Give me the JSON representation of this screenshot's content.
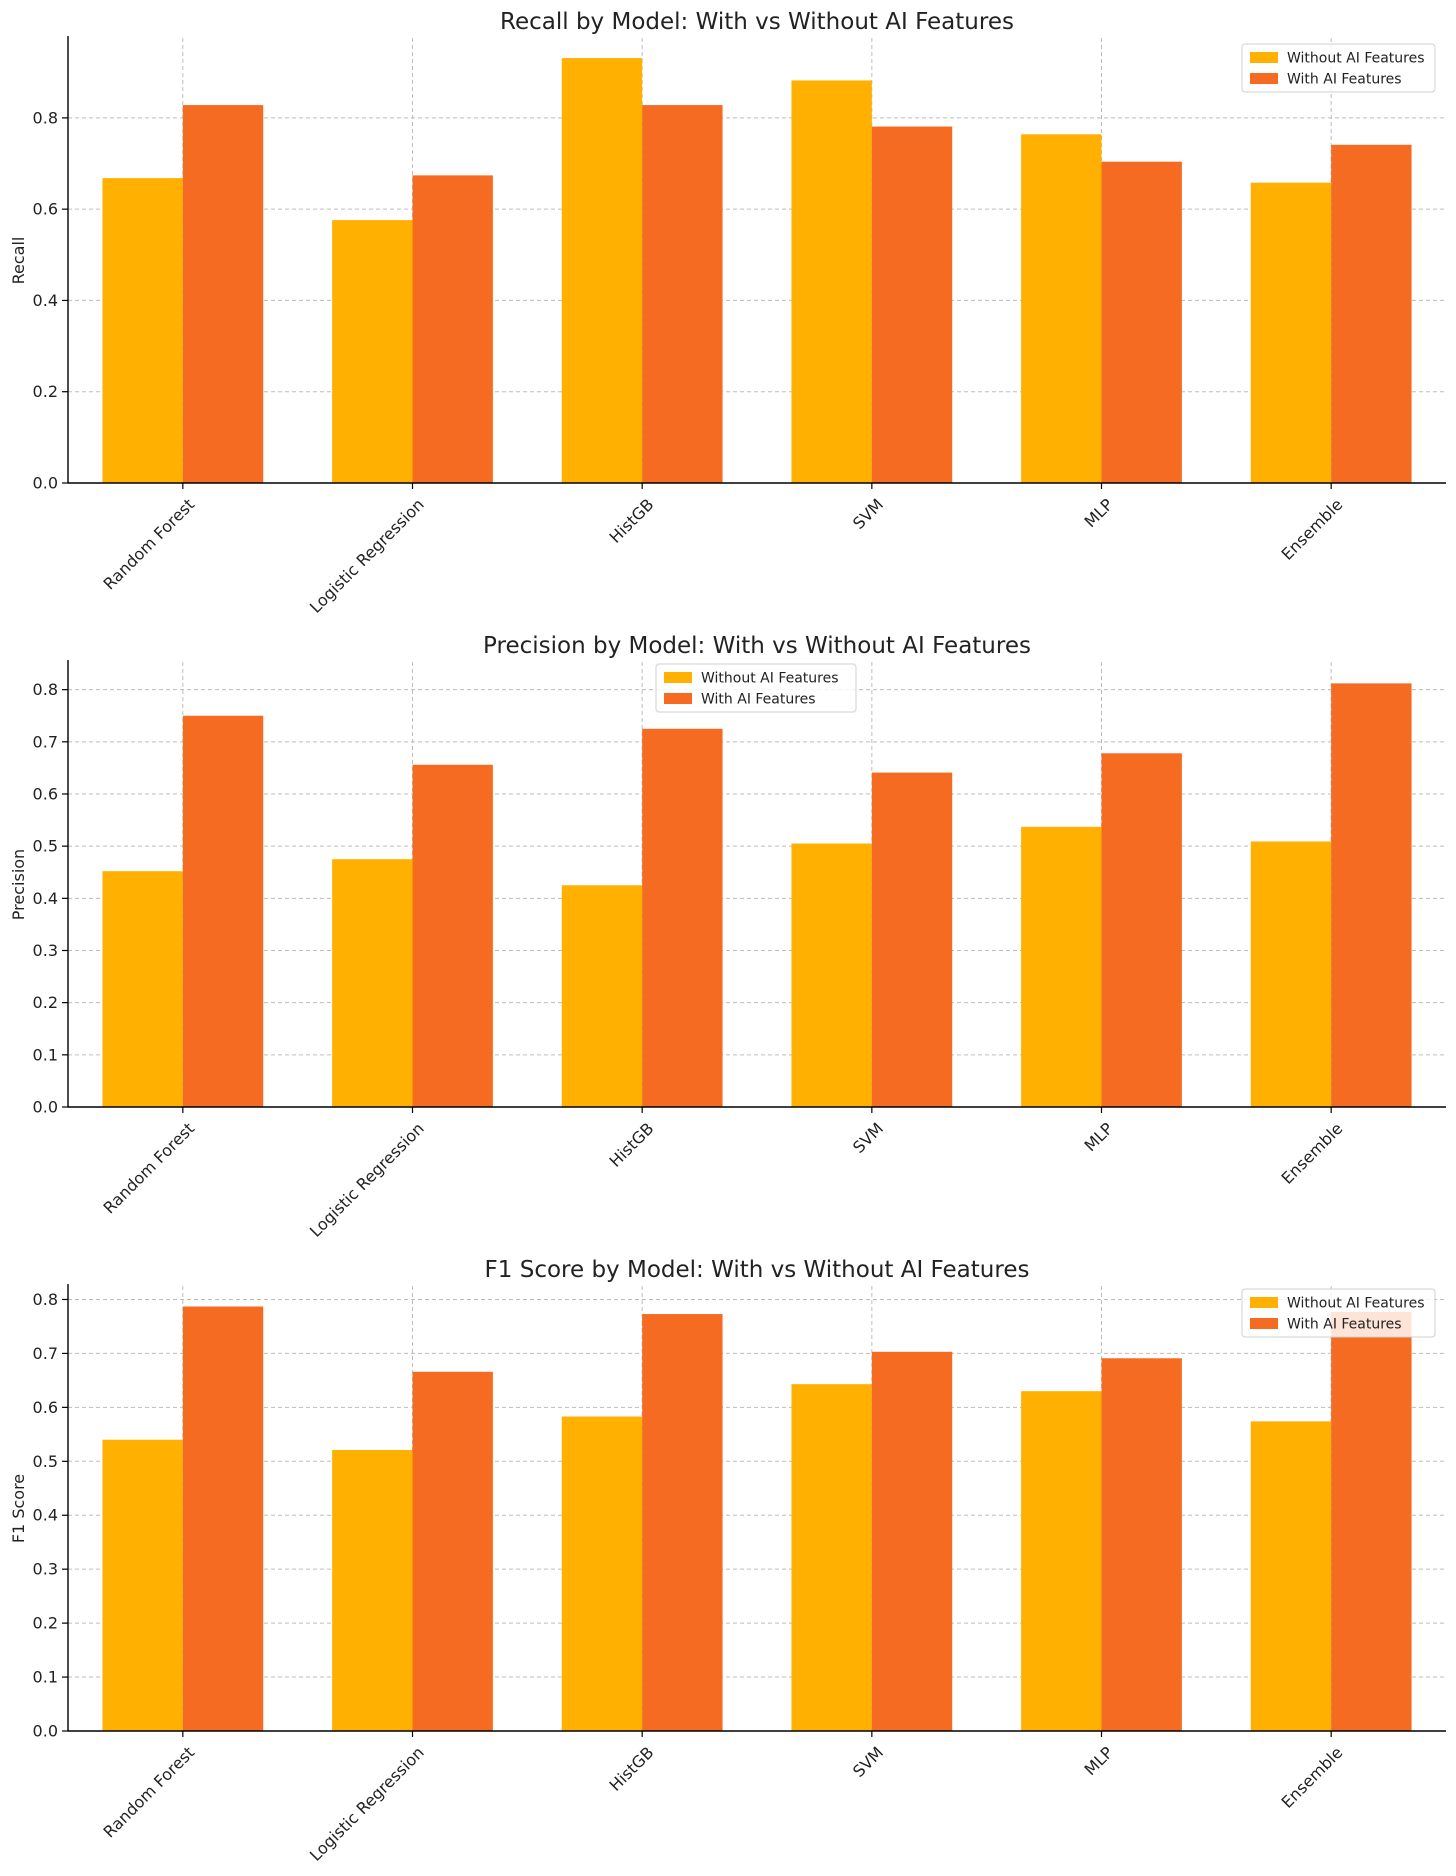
{
  "chart_data": [
    {
      "type": "bar",
      "title": "Recall by Model: With vs Without AI Features",
      "xlabel": "",
      "ylabel": "Recall",
      "ylim": [
        0,
        0.975
      ],
      "yticks": [
        0.0,
        0.2,
        0.4,
        0.6,
        0.8
      ],
      "grid": true,
      "legend_position": "top-right",
      "categories": [
        "Random Forest",
        "Logistic Regression",
        "HistGB",
        "SVM",
        "MLP",
        "Ensemble"
      ],
      "series": [
        {
          "name": "Without AI Features",
          "color": "#FFB000",
          "values": [
            0.668,
            0.576,
            0.931,
            0.882,
            0.764,
            0.658
          ]
        },
        {
          "name": "With AI Features",
          "color": "#F46B21",
          "values": [
            0.828,
            0.674,
            0.828,
            0.781,
            0.704,
            0.741
          ]
        }
      ]
    },
    {
      "type": "bar",
      "title": "Precision by Model: With vs Without AI Features",
      "xlabel": "",
      "ylabel": "Precision",
      "ylim": [
        0,
        0.853
      ],
      "yticks": [
        0.0,
        0.1,
        0.2,
        0.3,
        0.4,
        0.5,
        0.6,
        0.7,
        0.8
      ],
      "grid": true,
      "legend_position": "top-center",
      "categories": [
        "Random Forest",
        "Logistic Regression",
        "HistGB",
        "SVM",
        "MLP",
        "Ensemble"
      ],
      "series": [
        {
          "name": "Without AI Features",
          "color": "#FFB000",
          "values": [
            0.452,
            0.475,
            0.425,
            0.505,
            0.537,
            0.509
          ]
        },
        {
          "name": "With AI Features",
          "color": "#F46B21",
          "values": [
            0.75,
            0.656,
            0.725,
            0.641,
            0.678,
            0.812
          ]
        }
      ]
    },
    {
      "type": "bar",
      "title": "F1 Score by Model: With vs Without AI Features",
      "xlabel": "",
      "ylabel": "F1 Score",
      "ylim": [
        0,
        0.825
      ],
      "yticks": [
        0.0,
        0.1,
        0.2,
        0.3,
        0.4,
        0.5,
        0.6,
        0.7,
        0.8
      ],
      "grid": true,
      "legend_position": "top-right",
      "categories": [
        "Random Forest",
        "Logistic Regression",
        "HistGB",
        "SVM",
        "MLP",
        "Ensemble"
      ],
      "series": [
        {
          "name": "Without AI Features",
          "color": "#FFB000",
          "values": [
            0.54,
            0.521,
            0.583,
            0.643,
            0.63,
            0.574
          ]
        },
        {
          "name": "With AI Features",
          "color": "#F46B21",
          "values": [
            0.787,
            0.666,
            0.773,
            0.703,
            0.691,
            0.777
          ]
        }
      ]
    }
  ]
}
